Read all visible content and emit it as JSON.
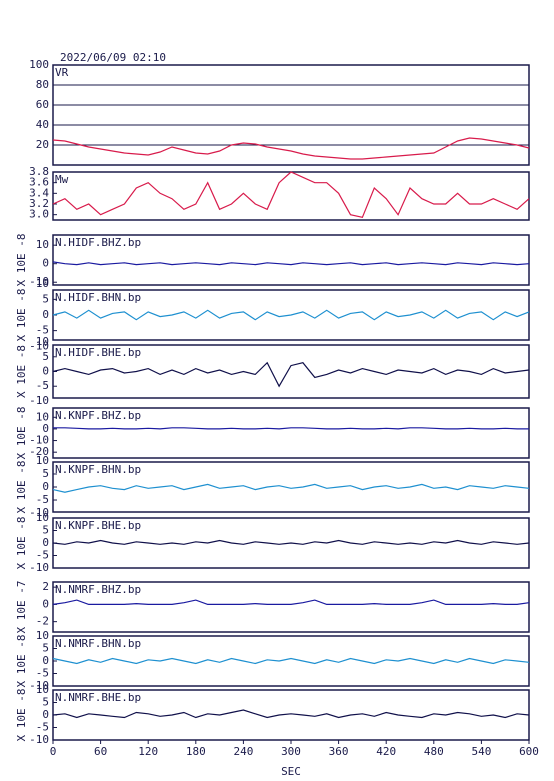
{
  "header": {
    "title": "2022/06/09 02:10"
  },
  "chart_data": [
    {
      "type": "line",
      "title": "VR",
      "color": "#d81b4b",
      "grid": true,
      "xlim": [
        0,
        600
      ],
      "ylim": [
        0,
        100
      ],
      "yticks": [
        20,
        40,
        60,
        80,
        100
      ],
      "x": [
        0,
        15,
        30,
        45,
        60,
        75,
        90,
        105,
        120,
        135,
        150,
        165,
        180,
        195,
        210,
        225,
        240,
        255,
        270,
        285,
        300,
        315,
        330,
        345,
        360,
        375,
        390,
        405,
        420,
        435,
        450,
        465,
        480,
        495,
        510,
        525,
        540,
        555,
        570,
        585,
        600
      ],
      "values": [
        25,
        24,
        21,
        18,
        16,
        14,
        12,
        11,
        10,
        13,
        18,
        15,
        12,
        11,
        14,
        20,
        22,
        21,
        18,
        16,
        14,
        11,
        9,
        8,
        7,
        6,
        6,
        7,
        8,
        9,
        10,
        11,
        12,
        18,
        24,
        27,
        26,
        24,
        22,
        20,
        17
      ]
    },
    {
      "type": "line",
      "title": "Mw",
      "color": "#d81b4b",
      "xlim": [
        0,
        600
      ],
      "ylim": [
        2.9,
        3.8
      ],
      "yticks": [
        {
          "value": 3,
          "label": "3.0"
        },
        3.2,
        3.4,
        3.6,
        3.8
      ],
      "x": [
        0,
        15,
        30,
        45,
        60,
        75,
        90,
        105,
        120,
        135,
        150,
        165,
        180,
        195,
        210,
        225,
        240,
        255,
        270,
        285,
        300,
        315,
        330,
        345,
        360,
        375,
        390,
        405,
        420,
        435,
        450,
        465,
        480,
        495,
        510,
        525,
        540,
        555,
        570,
        585,
        600
      ],
      "values": [
        3.2,
        3.3,
        3.1,
        3.2,
        3.0,
        3.1,
        3.2,
        3.5,
        3.6,
        3.4,
        3.3,
        3.1,
        3.2,
        3.6,
        3.1,
        3.2,
        3.4,
        3.2,
        3.1,
        3.6,
        3.8,
        3.7,
        3.6,
        3.6,
        3.4,
        3.0,
        2.95,
        3.5,
        3.3,
        3.0,
        3.5,
        3.3,
        3.2,
        3.2,
        3.4,
        3.2,
        3.2,
        3.3,
        3.2,
        3.1,
        3.3
      ]
    },
    {
      "type": "line",
      "title": "N.HIDF.BHZ.bp",
      "ylabel": "X 10E -8",
      "color": "#1a1aa0",
      "xlim": [
        0,
        600
      ],
      "ylim": [
        -11.5,
        15.5
      ],
      "yticks": [
        10,
        0,
        -10
      ],
      "x": [
        0,
        15,
        30,
        45,
        60,
        75,
        90,
        105,
        120,
        135,
        150,
        165,
        180,
        195,
        210,
        225,
        240,
        255,
        270,
        285,
        300,
        315,
        330,
        345,
        360,
        375,
        390,
        405,
        420,
        435,
        450,
        465,
        480,
        495,
        510,
        525,
        540,
        555,
        570,
        585,
        600
      ],
      "values": [
        1,
        0,
        -0.5,
        0.5,
        -0.5,
        0,
        0.5,
        -0.5,
        0,
        0.5,
        -0.5,
        0,
        0.5,
        0,
        -0.5,
        0.5,
        0,
        -0.5,
        0.5,
        0,
        -0.5,
        0.5,
        0,
        -0.5,
        0,
        0.5,
        -0.5,
        0,
        0.5,
        -0.5,
        0,
        0.5,
        0,
        -0.5,
        0.5,
        0,
        -0.5,
        0.5,
        0,
        -0.5,
        0
      ]
    },
    {
      "type": "line",
      "title": "N.HIDF.BHN.bp",
      "ylabel": "X 10E -8",
      "color": "#1e90d0",
      "xlim": [
        0,
        600
      ],
      "ylim": [
        -8,
        8
      ],
      "yticks": [
        10,
        5,
        0,
        -5,
        -10
      ],
      "x": [
        0,
        15,
        30,
        45,
        60,
        75,
        90,
        105,
        120,
        135,
        150,
        165,
        180,
        195,
        210,
        225,
        240,
        255,
        270,
        285,
        300,
        315,
        330,
        345,
        360,
        375,
        390,
        405,
        420,
        435,
        450,
        465,
        480,
        495,
        510,
        525,
        540,
        555,
        570,
        585,
        600
      ],
      "values": [
        0,
        1,
        -1,
        1.5,
        -1,
        0.5,
        1,
        -1.5,
        1,
        -0.5,
        0,
        1,
        -1,
        1.5,
        -1,
        0.5,
        1,
        -1.5,
        1,
        -0.5,
        0,
        1,
        -1,
        1.5,
        -1,
        0.5,
        1,
        -1.5,
        1,
        -0.5,
        0,
        1,
        -1,
        1.5,
        -1,
        0.5,
        1,
        -1.5,
        1,
        -0.5,
        1
      ]
    },
    {
      "type": "line",
      "title": "N.HIDF.BHE.bp",
      "ylabel": "X 10E -8",
      "color": "#10104a",
      "xlim": [
        0,
        600
      ],
      "ylim": [
        -9,
        9
      ],
      "yticks": [
        10,
        5,
        0,
        -5,
        -10
      ],
      "x": [
        0,
        15,
        30,
        45,
        60,
        75,
        90,
        105,
        120,
        135,
        150,
        165,
        180,
        195,
        210,
        225,
        240,
        255,
        270,
        285,
        300,
        315,
        330,
        345,
        360,
        375,
        390,
        405,
        420,
        435,
        450,
        465,
        480,
        495,
        510,
        525,
        540,
        555,
        570,
        585,
        600
      ],
      "values": [
        0,
        1,
        0,
        -1,
        0.5,
        1,
        -0.5,
        0,
        1,
        -1,
        0.5,
        -1,
        1,
        -0.5,
        0.5,
        -1,
        0,
        -1,
        3,
        -5,
        2,
        3,
        -2,
        -1,
        0.5,
        -0.5,
        1,
        0,
        -1,
        0.5,
        0,
        -0.5,
        1,
        -1,
        0.5,
        0,
        -1,
        1,
        -0.5,
        0,
        0.5
      ]
    },
    {
      "type": "line",
      "title": "N.KNPF.BHZ.bp",
      "ylabel": "X 10E -8",
      "color": "#1a1aa0",
      "xlim": [
        0,
        600
      ],
      "ylim": [
        -25,
        18
      ],
      "yticks": [
        10,
        0,
        -10,
        -20
      ],
      "x": [
        0,
        15,
        30,
        45,
        60,
        75,
        90,
        105,
        120,
        135,
        150,
        165,
        180,
        195,
        210,
        225,
        240,
        255,
        270,
        285,
        300,
        315,
        330,
        345,
        360,
        375,
        390,
        405,
        420,
        435,
        450,
        465,
        480,
        495,
        510,
        525,
        540,
        555,
        570,
        585,
        600
      ],
      "values": [
        1,
        1,
        0.5,
        0,
        0,
        0.5,
        0,
        0,
        0.5,
        0,
        1,
        1,
        0.5,
        0,
        0,
        0.5,
        0,
        0,
        0.5,
        0,
        1,
        1,
        0.5,
        0,
        0,
        0.5,
        0,
        0,
        0.5,
        0,
        1,
        1,
        0.5,
        0,
        0,
        0.5,
        0,
        0,
        0.5,
        0,
        0
      ]
    },
    {
      "type": "line",
      "title": "N.KNPF.BHN.bp",
      "ylabel": "X 10E -8",
      "color": "#1e90d0",
      "xlim": [
        0,
        600
      ],
      "ylim": [
        -9.6,
        9.6
      ],
      "yticks": [
        10,
        5,
        0,
        -5,
        -10
      ],
      "x": [
        0,
        15,
        30,
        45,
        60,
        75,
        90,
        105,
        120,
        135,
        150,
        165,
        180,
        195,
        210,
        225,
        240,
        255,
        270,
        285,
        300,
        315,
        330,
        345,
        360,
        375,
        390,
        405,
        420,
        435,
        450,
        465,
        480,
        495,
        510,
        525,
        540,
        555,
        570,
        585,
        600
      ],
      "values": [
        -1,
        -2,
        -1,
        0,
        0.5,
        -0.5,
        -1,
        0.5,
        -0.5,
        0,
        0.5,
        -1,
        0,
        1,
        -0.5,
        0,
        0.5,
        -1,
        0,
        0.5,
        -0.5,
        0,
        1,
        -0.5,
        0,
        0.5,
        -1,
        0,
        0.5,
        -0.5,
        0,
        1,
        -0.5,
        0,
        -1,
        0.5,
        0,
        -0.5,
        0.5,
        0,
        -0.5
      ]
    },
    {
      "type": "line",
      "title": "N.KNPF.BHE.bp",
      "ylabel": "X 10E -8",
      "color": "#10104a",
      "xlim": [
        0,
        600
      ],
      "ylim": [
        -10,
        10
      ],
      "yticks": [
        10,
        5,
        0,
        -5,
        -10
      ],
      "x": [
        0,
        15,
        30,
        45,
        60,
        75,
        90,
        105,
        120,
        135,
        150,
        165,
        180,
        195,
        210,
        225,
        240,
        255,
        270,
        285,
        300,
        315,
        330,
        345,
        360,
        375,
        390,
        405,
        420,
        435,
        450,
        465,
        480,
        495,
        510,
        525,
        540,
        555,
        570,
        585,
        600
      ],
      "values": [
        0,
        -0.5,
        0.5,
        0,
        1,
        0,
        -0.5,
        0.5,
        0,
        -0.5,
        0,
        -0.5,
        0.5,
        0,
        1,
        0,
        -0.5,
        0.5,
        0,
        -0.5,
        0,
        -0.5,
        0.5,
        0,
        1,
        0,
        -0.5,
        0.5,
        0,
        -0.5,
        0,
        -0.5,
        0.5,
        0,
        1,
        0,
        -0.5,
        0.5,
        0,
        -0.5,
        0
      ]
    },
    {
      "type": "line",
      "title": "N.NMRF.BHZ.bp",
      "ylabel": "X 10E -7",
      "color": "#1a1aa0",
      "xlim": [
        0,
        600
      ],
      "ylim": [
        -3.2,
        2.6
      ],
      "yticks": [
        2,
        0,
        -2
      ],
      "x": [
        0,
        15,
        30,
        45,
        60,
        75,
        90,
        105,
        120,
        135,
        150,
        165,
        180,
        195,
        210,
        225,
        240,
        255,
        270,
        285,
        300,
        315,
        330,
        345,
        360,
        375,
        390,
        405,
        420,
        435,
        450,
        465,
        480,
        495,
        510,
        525,
        540,
        555,
        570,
        585,
        600
      ],
      "values": [
        0,
        0.2,
        0.5,
        0,
        0,
        0,
        0,
        0.1,
        0,
        0,
        0,
        0.2,
        0.5,
        0,
        0,
        0,
        0,
        0.1,
        0,
        0,
        0,
        0.2,
        0.5,
        0,
        0,
        0,
        0,
        0.1,
        0,
        0,
        0,
        0.2,
        0.5,
        0,
        0,
        0,
        0,
        0.1,
        0,
        0,
        0.2
      ]
    },
    {
      "type": "line",
      "title": "N.NMRF.BHN.bp",
      "ylabel": "X 10E -8",
      "color": "#1e90d0",
      "xlim": [
        0,
        600
      ],
      "ylim": [
        -10,
        10
      ],
      "yticks": [
        10,
        5,
        0,
        -5,
        -10
      ],
      "x": [
        0,
        15,
        30,
        45,
        60,
        75,
        90,
        105,
        120,
        135,
        150,
        165,
        180,
        195,
        210,
        225,
        240,
        255,
        270,
        285,
        300,
        315,
        330,
        345,
        360,
        375,
        390,
        405,
        420,
        435,
        450,
        465,
        480,
        495,
        510,
        525,
        540,
        555,
        570,
        585,
        600
      ],
      "values": [
        1,
        0,
        -1,
        0.5,
        -0.5,
        1,
        0,
        -1,
        0.5,
        0,
        1,
        0,
        -1,
        0.5,
        -0.5,
        1,
        0,
        -1,
        0.5,
        0,
        1,
        0,
        -1,
        0.5,
        -0.5,
        1,
        0,
        -1,
        0.5,
        0,
        1,
        0,
        -1,
        0.5,
        -0.5,
        1,
        0,
        -1,
        0.5,
        0,
        -0.5
      ]
    },
    {
      "type": "line",
      "title": "N.NMRF.BHE.bp",
      "ylabel": "X 10E -8",
      "color": "#10104a",
      "xlim": [
        0,
        600
      ],
      "ylim": [
        -10,
        10
      ],
      "yticks": [
        10,
        5,
        0,
        -5,
        -10
      ],
      "xticks": [
        0,
        60,
        120,
        180,
        240,
        300,
        360,
        420,
        480,
        540,
        600
      ],
      "xlabel": "SEC",
      "x": [
        0,
        15,
        30,
        45,
        60,
        75,
        90,
        105,
        120,
        135,
        150,
        165,
        180,
        195,
        210,
        225,
        240,
        255,
        270,
        285,
        300,
        315,
        330,
        345,
        360,
        375,
        390,
        405,
        420,
        435,
        450,
        465,
        480,
        495,
        510,
        525,
        540,
        555,
        570,
        585,
        600
      ],
      "values": [
        0,
        0.5,
        -1,
        0.5,
        0,
        -0.5,
        -1,
        1,
        0.5,
        -0.5,
        0,
        1,
        -1,
        0.5,
        0,
        1,
        2,
        0.5,
        -1,
        0,
        0.5,
        0,
        -0.5,
        0.5,
        -1,
        0,
        0.5,
        -0.5,
        1,
        0,
        -0.5,
        -1,
        0.5,
        0,
        1,
        0.5,
        -0.5,
        0,
        -1,
        0.5,
        0
      ]
    }
  ]
}
